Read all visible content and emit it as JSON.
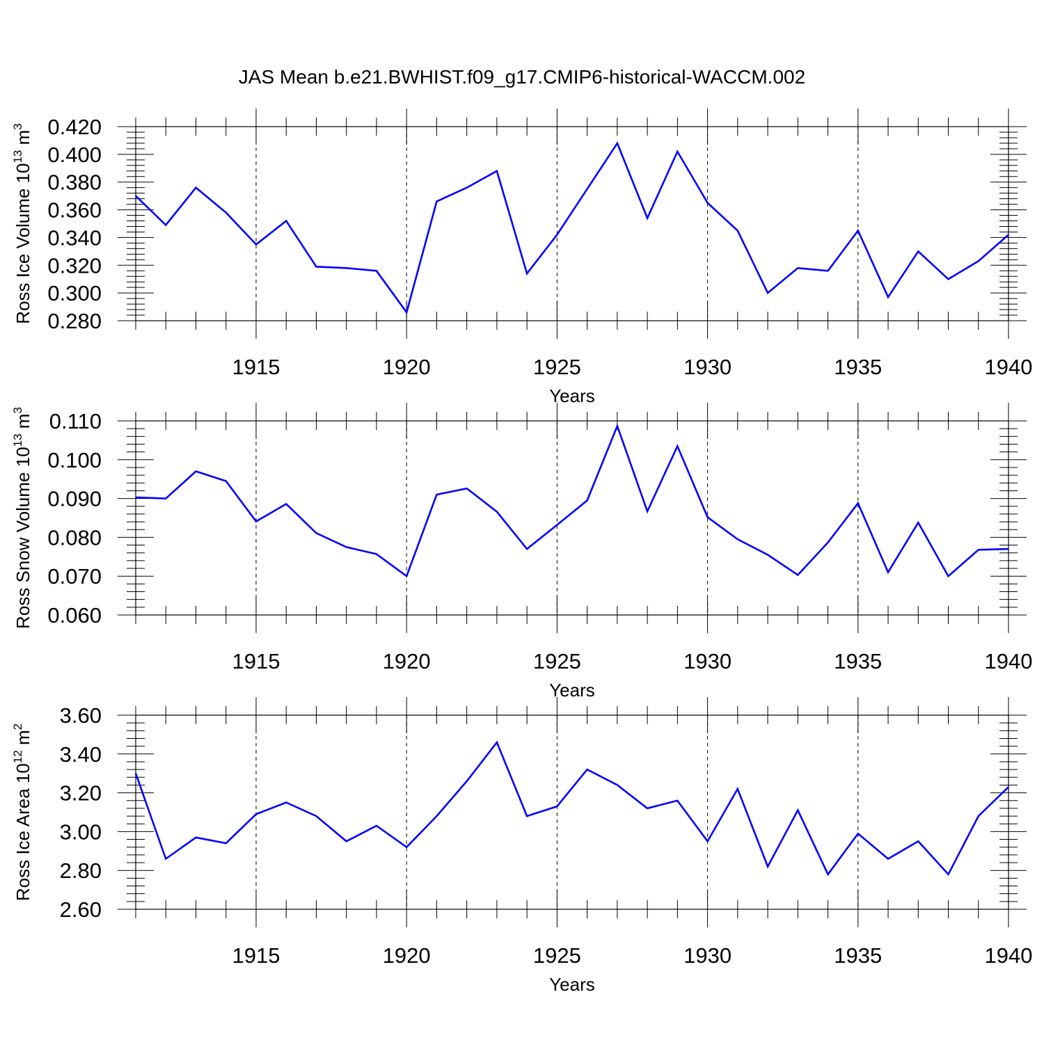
{
  "title": "JAS Mean b.e21.BWHIST.f09_g17.CMIP6-historical-WACCM.002",
  "line_color": "#0000ff",
  "chart_data": [
    {
      "type": "line",
      "ylabel_main": "Ross Ice Volume 10",
      "ylabel_exp": "13",
      "ylabel_unit": " m",
      "ylabel_unit_exp": "3",
      "xlabel": "Years",
      "xlim": [
        1911,
        1940
      ],
      "ylim": [
        0.28,
        0.42
      ],
      "yticks": [
        "0.280",
        "0.300",
        "0.320",
        "0.340",
        "0.360",
        "0.380",
        "0.400",
        "0.420"
      ],
      "xticks": [
        "1915",
        "1920",
        "1925",
        "1930",
        "1935",
        "1940"
      ],
      "grid": "dashed vertical at major x ticks",
      "x": [
        1911,
        1912,
        1913,
        1914,
        1915,
        1916,
        1917,
        1918,
        1919,
        1920,
        1921,
        1922,
        1923,
        1924,
        1925,
        1926,
        1927,
        1928,
        1929,
        1930,
        1931,
        1932,
        1933,
        1934,
        1935,
        1936,
        1937,
        1938,
        1939,
        1940
      ],
      "values": [
        0.37,
        0.349,
        0.376,
        0.358,
        0.335,
        0.352,
        0.319,
        0.318,
        0.316,
        0.286,
        0.366,
        0.376,
        0.388,
        0.314,
        0.342,
        0.375,
        0.408,
        0.354,
        0.402,
        0.365,
        0.345,
        0.3,
        0.318,
        0.316,
        0.345,
        0.297,
        0.33,
        0.31,
        0.323,
        0.342
      ]
    },
    {
      "type": "line",
      "ylabel_main": "Ross Snow Volume 10",
      "ylabel_exp": "13",
      "ylabel_unit": " m",
      "ylabel_unit_exp": "3",
      "xlabel": "Years",
      "xlim": [
        1911,
        1940
      ],
      "ylim": [
        0.06,
        0.11
      ],
      "yticks": [
        "0.060",
        "0.070",
        "0.080",
        "0.090",
        "0.100",
        "0.110"
      ],
      "xticks": [
        "1915",
        "1920",
        "1925",
        "1930",
        "1935",
        "1940"
      ],
      "grid": "dashed vertical at major x ticks",
      "x": [
        1911,
        1912,
        1913,
        1914,
        1915,
        1916,
        1917,
        1918,
        1919,
        1920,
        1921,
        1922,
        1923,
        1924,
        1925,
        1926,
        1927,
        1928,
        1929,
        1930,
        1931,
        1932,
        1933,
        1934,
        1935,
        1936,
        1937,
        1938,
        1939,
        1940
      ],
      "values": [
        0.0903,
        0.09,
        0.097,
        0.0945,
        0.0841,
        0.0886,
        0.0811,
        0.0775,
        0.0757,
        0.07,
        0.091,
        0.0926,
        0.0866,
        0.077,
        0.0832,
        0.0895,
        0.1087,
        0.0867,
        0.1035,
        0.0852,
        0.0795,
        0.0755,
        0.0703,
        0.0787,
        0.0888,
        0.071,
        0.0838,
        0.07,
        0.0768,
        0.077
      ]
    },
    {
      "type": "line",
      "ylabel_main": "Ross Ice Area 10",
      "ylabel_exp": "12",
      "ylabel_unit": " m",
      "ylabel_unit_exp": "2",
      "xlabel": "Years",
      "xlim": [
        1911,
        1940
      ],
      "ylim": [
        2.6,
        3.6
      ],
      "yticks": [
        "2.60",
        "2.80",
        "3.00",
        "3.20",
        "3.40",
        "3.60"
      ],
      "xticks": [
        "1915",
        "1920",
        "1925",
        "1930",
        "1935",
        "1940"
      ],
      "grid": "dashed vertical at major x ticks",
      "x": [
        1911,
        1912,
        1913,
        1914,
        1915,
        1916,
        1917,
        1918,
        1919,
        1920,
        1921,
        1922,
        1923,
        1924,
        1925,
        1926,
        1927,
        1928,
        1929,
        1930,
        1931,
        1932,
        1933,
        1934,
        1935,
        1936,
        1937,
        1938,
        1939,
        1940
      ],
      "values": [
        3.3,
        2.86,
        2.97,
        2.94,
        3.09,
        3.15,
        3.08,
        2.95,
        3.03,
        2.92,
        3.08,
        3.26,
        3.46,
        3.08,
        3.13,
        3.32,
        3.24,
        3.12,
        3.16,
        2.95,
        3.22,
        2.82,
        3.11,
        2.78,
        2.99,
        2.86,
        2.95,
        2.78,
        3.08,
        3.23
      ]
    }
  ]
}
